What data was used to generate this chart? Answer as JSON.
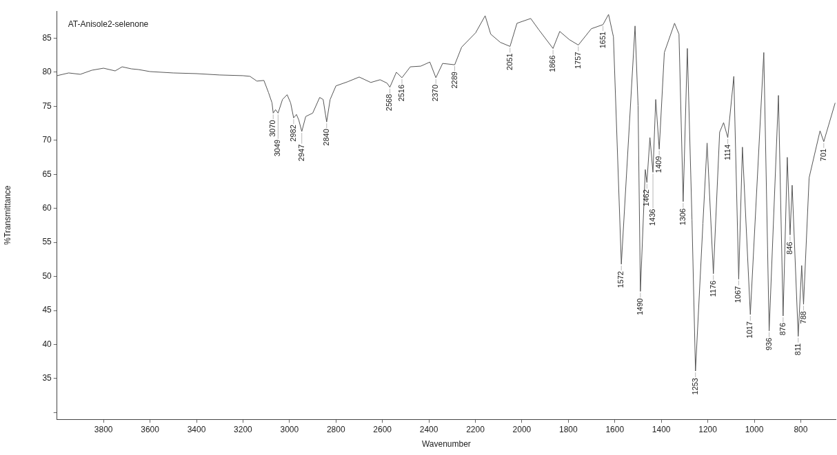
{
  "chart_data": {
    "type": "line",
    "title": "AT-Anisole2-selenone",
    "xlabel": "Wavenumber",
    "ylabel": "%Transmittance",
    "xlim": [
      4000,
      650
    ],
    "ylim": [
      29,
      89
    ],
    "xticks": [
      3800,
      3600,
      3400,
      3200,
      3000,
      2800,
      2600,
      2400,
      2200,
      2000,
      1800,
      1600,
      1400,
      1200,
      1000,
      800
    ],
    "yticks": [
      {
        "value": 30,
        "label": null
      },
      35,
      40,
      45,
      50,
      55,
      60,
      65,
      70,
      75,
      80,
      85
    ],
    "grid": false,
    "marker": "none",
    "line_style": "solid",
    "x": [
      4000,
      3950,
      3900,
      3850,
      3800,
      3750,
      3720,
      3680,
      3650,
      3600,
      3500,
      3400,
      3300,
      3200,
      3170,
      3140,
      3110,
      3090,
      3075,
      3070,
      3060,
      3049,
      3030,
      3010,
      2995,
      2982,
      2970,
      2960,
      2947,
      2930,
      2900,
      2870,
      2855,
      2840,
      2825,
      2800,
      2750,
      2700,
      2650,
      2610,
      2580,
      2568,
      2540,
      2516,
      2480,
      2435,
      2396,
      2370,
      2341,
      2289,
      2259,
      2199,
      2158,
      2134,
      2093,
      2051,
      2021,
      1962,
      1926,
      1866,
      1837,
      1796,
      1757,
      1701,
      1651,
      1627,
      1606,
      1572,
      1513,
      1500,
      1490,
      1469,
      1462,
      1449,
      1436,
      1424,
      1409,
      1387,
      1343,
      1324,
      1306,
      1288,
      1268,
      1253,
      1221,
      1203,
      1176,
      1149,
      1132,
      1114,
      1088,
      1067,
      1051,
      1017,
      959,
      936,
      896,
      876,
      858,
      846,
      837,
      811,
      796,
      788,
      764,
      717,
      701,
      652
    ],
    "series": [
      {
        "color": "#555555",
        "values": [
          79.5,
          79.9,
          79.7,
          80.3,
          80.6,
          80.2,
          80.8,
          80.5,
          80.4,
          80.1,
          79.9,
          79.8,
          79.6,
          79.5,
          79.4,
          78.7,
          78.8,
          77,
          75.5,
          74,
          74.5,
          74,
          76,
          76.7,
          75.5,
          73.3,
          73.8,
          73,
          71.3,
          73.5,
          74,
          76.3,
          76,
          72.7,
          76,
          78,
          78.6,
          79.3,
          78.5,
          78.9,
          78.4,
          77.8,
          80,
          79.2,
          80.8,
          80.9,
          81.5,
          79.2,
          81.3,
          81.1,
          83.7,
          85.8,
          88.3,
          85.6,
          84.4,
          83.8,
          87.2,
          87.9,
          86.2,
          83.5,
          86,
          84.8,
          84,
          86.4,
          87,
          88.5,
          85.2,
          51.8,
          86.8,
          75.1,
          47.8,
          65.7,
          63.8,
          70.4,
          65.3,
          76,
          68.7,
          82.9,
          87.2,
          85.6,
          61,
          83.5,
          58.3,
          36.1,
          57.8,
          69.6,
          50.4,
          71.2,
          72.6,
          70.4,
          79.4,
          49.6,
          69,
          44.4,
          82.9,
          42,
          76.6,
          44.2,
          67.5,
          56.1,
          63.4,
          41.2,
          51.6,
          45.9,
          64.5,
          71.4,
          69.8,
          75.5
        ]
      }
    ],
    "annotations": [
      {
        "text": "3070",
        "x": 3070,
        "y": 74
      },
      {
        "text": "3049",
        "x": 3049,
        "y": 74
      },
      {
        "text": "2982",
        "x": 2982,
        "y": 73.3
      },
      {
        "text": "2947",
        "x": 2947,
        "y": 71.3
      },
      {
        "text": "2840",
        "x": 2840,
        "y": 72.7
      },
      {
        "text": "2568",
        "x": 2568,
        "y": 77.8
      },
      {
        "text": "2516",
        "x": 2516,
        "y": 79.2
      },
      {
        "text": "2370",
        "x": 2370,
        "y": 79.2
      },
      {
        "text": "2289",
        "x": 2289,
        "y": 81.1
      },
      {
        "text": "2051",
        "x": 2051,
        "y": 83.8
      },
      {
        "text": "1866",
        "x": 1866,
        "y": 83.5
      },
      {
        "text": "1757",
        "x": 1757,
        "y": 84
      },
      {
        "text": "1651",
        "x": 1651,
        "y": 87
      },
      {
        "text": "1572",
        "x": 1572,
        "y": 51.8
      },
      {
        "text": "1490",
        "x": 1490,
        "y": 47.8
      },
      {
        "text": "1462",
        "x": 1462,
        "y": 63.8
      },
      {
        "text": "1436",
        "x": 1436,
        "y": 65.3
      },
      {
        "text": "1409",
        "x": 1409,
        "y": 68.7
      },
      {
        "text": "1306",
        "x": 1306,
        "y": 61
      },
      {
        "text": "1253",
        "x": 1253,
        "y": 36.1
      },
      {
        "text": "1176",
        "x": 1176,
        "y": 50.4
      },
      {
        "text": "1114",
        "x": 1114,
        "y": 70.4
      },
      {
        "text": "1067",
        "x": 1067,
        "y": 49.6
      },
      {
        "text": "1017",
        "x": 1017,
        "y": 44.4
      },
      {
        "text": "936",
        "x": 936,
        "y": 42
      },
      {
        "text": "876",
        "x": 876,
        "y": 44.2
      },
      {
        "text": "846",
        "x": 846,
        "y": 56.1
      },
      {
        "text": "811",
        "x": 811,
        "y": 41.2
      },
      {
        "text": "788",
        "x": 788,
        "y": 45.9
      },
      {
        "text": "701",
        "x": 701,
        "y": 69.8
      }
    ]
  }
}
